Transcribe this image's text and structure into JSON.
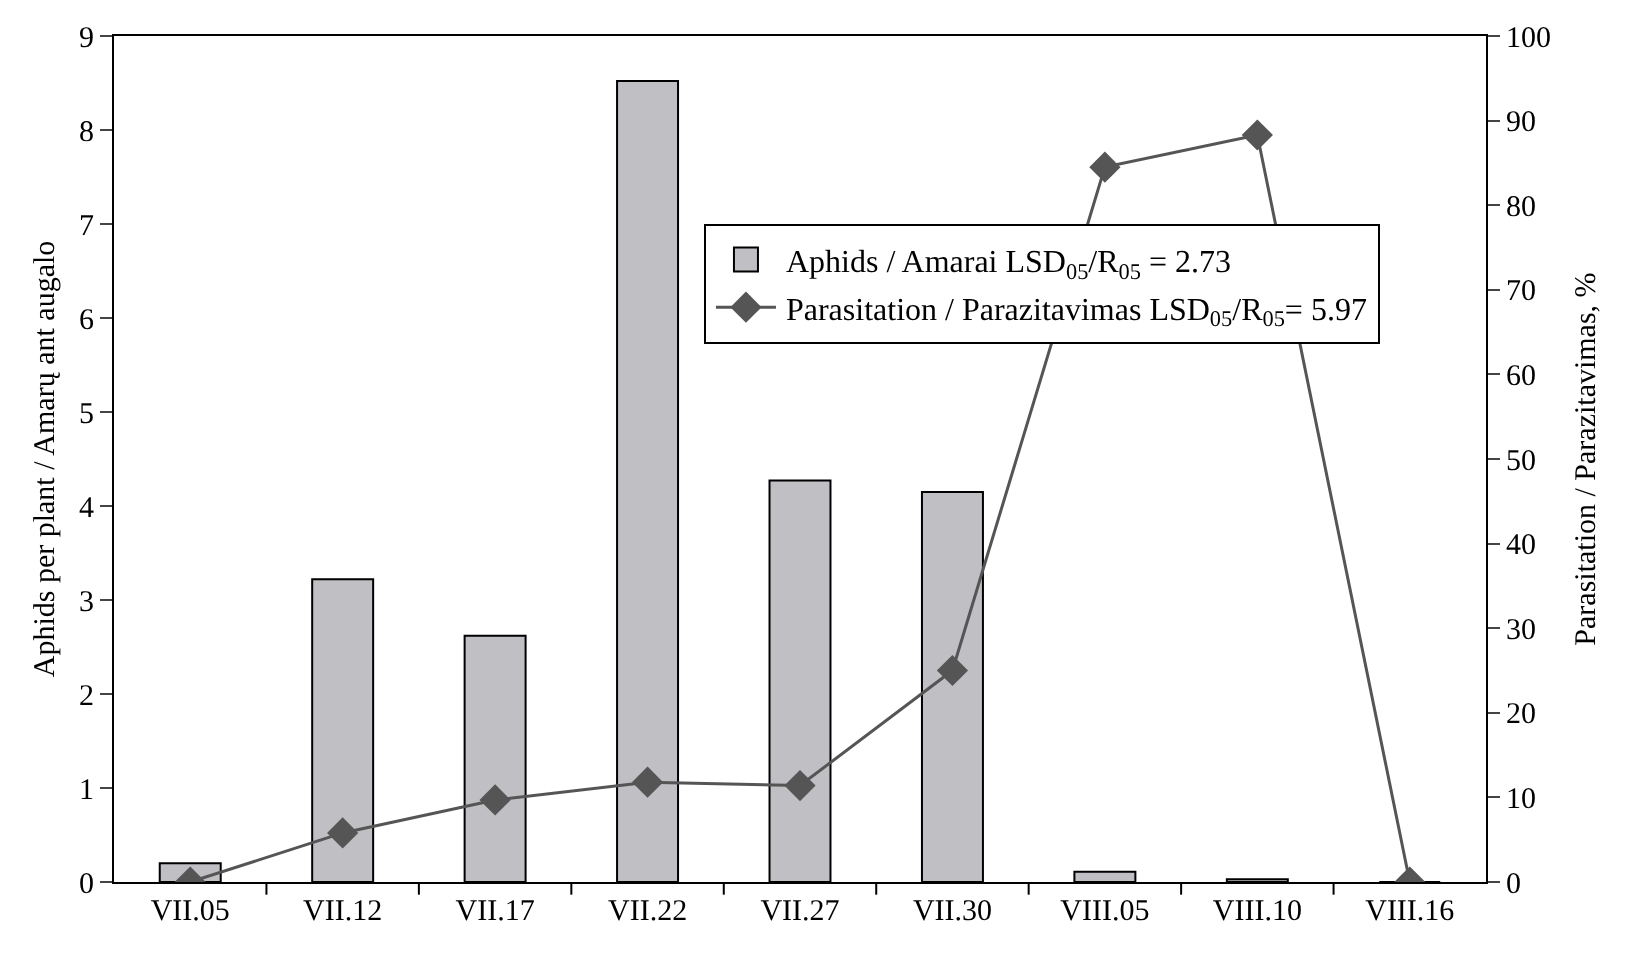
{
  "chart_data": {
    "type": "bar",
    "categories": [
      "VII.05",
      "VII.12",
      "VII.17",
      "VII.22",
      "VII.27",
      "VII.30",
      "VIII.05",
      "VIII.10",
      "VIII.16"
    ],
    "series": [
      {
        "name": "Aphids / Amarai LSD$_{05}$/R$_{05}$ = 2.73",
        "color": "#bfbfc4",
        "values": [
          0.2,
          3.22,
          2.62,
          8.52,
          4.27,
          4.15,
          0.11,
          0.03,
          0
        ]
      },
      {
        "name": "Parasitation / Parazitavimas LSD$_{05}$/R$_{05}$= 5.97",
        "type": "line",
        "axis": "y2",
        "color": "#555555",
        "marker": "diamond",
        "values": [
          0,
          5.8,
          9.7,
          11.8,
          11.4,
          25.0,
          84.5,
          88.3,
          0
        ]
      }
    ],
    "ylabel": "Aphids per plant / Amarų ant augalo",
    "y2label": "Parasitation / Parazitavimas, %",
    "ylim": [
      0,
      9
    ],
    "yticks": [
      0,
      1,
      2,
      3,
      4,
      5,
      6,
      7,
      8,
      9
    ],
    "y2lim": [
      0,
      100
    ],
    "y2ticks": [
      0,
      10,
      20,
      30,
      40,
      50,
      60,
      70,
      80,
      90,
      100
    ],
    "legend": "top right"
  }
}
